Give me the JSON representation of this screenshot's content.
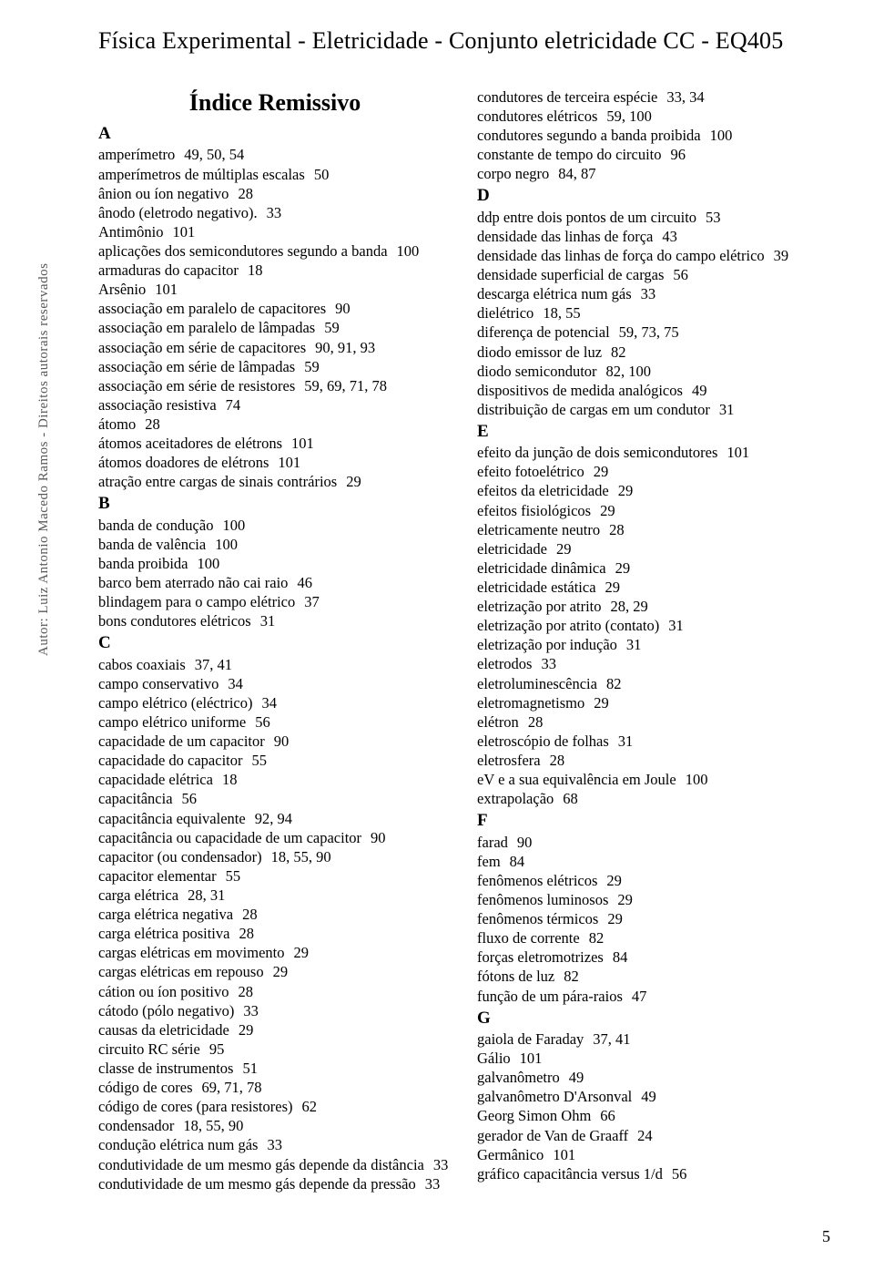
{
  "header": "Física Experimental - Eletricidade - Conjunto eletricidade CC - EQ405",
  "side_credit": "Autor: Luiz Antonio Macedo Ramos - Direitos autorais reservados",
  "index_title": "Índice Remissivo",
  "page_number": "5",
  "columns": [
    {
      "groups": [
        {
          "letter": "A",
          "entries": [
            {
              "term": "amperímetro",
              "pages": "49, 50, 54"
            },
            {
              "term": "amperímetros de múltiplas escalas",
              "pages": "50"
            },
            {
              "term": "ânion ou íon negativo",
              "pages": "28"
            },
            {
              "term": "ânodo (eletrodo negativo).",
              "pages": "33"
            },
            {
              "term": "Antimônio",
              "pages": "101"
            },
            {
              "term": "aplicações dos semicondutores segundo a banda",
              "pages": "100"
            },
            {
              "term": "armaduras do capacitor",
              "pages": "18"
            },
            {
              "term": "Arsênio",
              "pages": "101"
            },
            {
              "term": "associação em paralelo de capacitores",
              "pages": "90"
            },
            {
              "term": "associação em paralelo de lâmpadas",
              "pages": "59"
            },
            {
              "term": "associação em série de capacitores",
              "pages": "90, 91, 93"
            },
            {
              "term": "associação em série de lâmpadas",
              "pages": "59"
            },
            {
              "term": "associação em série de resistores",
              "pages": "59, 69, 71, 78"
            },
            {
              "term": "associação resistiva",
              "pages": "74"
            },
            {
              "term": "átomo",
              "pages": "28"
            },
            {
              "term": "átomos aceitadores de elétrons",
              "pages": "101"
            },
            {
              "term": "átomos doadores de elétrons",
              "pages": "101"
            },
            {
              "term": "atração entre cargas de sinais contrários",
              "pages": "29"
            }
          ]
        },
        {
          "letter": "B",
          "entries": [
            {
              "term": "banda de condução",
              "pages": "100"
            },
            {
              "term": "banda de valência",
              "pages": "100"
            },
            {
              "term": "banda proibida",
              "pages": "100"
            },
            {
              "term": "barco bem aterrado não cai raio",
              "pages": "46"
            },
            {
              "term": "blindagem para o campo elétrico",
              "pages": "37"
            },
            {
              "term": "bons condutores elétricos",
              "pages": "31"
            }
          ]
        },
        {
          "letter": "C",
          "entries": [
            {
              "term": "cabos coaxiais",
              "pages": "37, 41"
            },
            {
              "term": "campo conservativo",
              "pages": "34"
            },
            {
              "term": "campo elétrico (eléctrico)",
              "pages": "34"
            },
            {
              "term": "campo elétrico uniforme",
              "pages": "56"
            },
            {
              "term": "capacidade de um capacitor",
              "pages": "90"
            },
            {
              "term": "capacidade do capacitor",
              "pages": "55"
            },
            {
              "term": "capacidade elétrica",
              "pages": "18"
            },
            {
              "term": "capacitância",
              "pages": "56"
            },
            {
              "term": "capacitância equivalente",
              "pages": "92, 94"
            },
            {
              "term": "capacitância ou capacidade de um capacitor",
              "pages": "90"
            },
            {
              "term": "capacitor (ou condensador)",
              "pages": "18, 55, 90"
            },
            {
              "term": "capacitor elementar",
              "pages": "55"
            },
            {
              "term": "carga elétrica",
              "pages": "28, 31"
            },
            {
              "term": "carga elétrica negativa",
              "pages": "28"
            },
            {
              "term": "carga elétrica positiva",
              "pages": "28"
            },
            {
              "term": "cargas elétricas em movimento",
              "pages": "29"
            },
            {
              "term": "cargas elétricas em repouso",
              "pages": "29"
            },
            {
              "term": "cátion ou íon positivo",
              "pages": "28"
            },
            {
              "term": "cátodo (pólo negativo)",
              "pages": "33"
            },
            {
              "term": "causas da eletricidade",
              "pages": "29"
            },
            {
              "term": "circuito RC série",
              "pages": "95"
            },
            {
              "term": "classe de instrumentos",
              "pages": "51"
            },
            {
              "term": "código de cores",
              "pages": "69, 71, 78"
            },
            {
              "term": "código de cores (para resistores)",
              "pages": "62"
            },
            {
              "term": "condensador",
              "pages": "18, 55, 90"
            },
            {
              "term": "condução elétrica num gás",
              "pages": "33"
            },
            {
              "term": "condutividade de um mesmo gás depende da distância",
              "pages": "33"
            },
            {
              "term": "condutividade de um mesmo gás depende da pressão",
              "pages": "33"
            }
          ]
        }
      ]
    },
    {
      "groups": [
        {
          "letter": "",
          "entries": [
            {
              "term": "condutores de terceira espécie",
              "pages": "33, 34"
            },
            {
              "term": "condutores elétricos",
              "pages": "59, 100"
            },
            {
              "term": "condutores segundo a banda proibida",
              "pages": "100"
            },
            {
              "term": "constante de tempo do circuito",
              "pages": "96"
            },
            {
              "term": "corpo negro",
              "pages": "84, 87"
            }
          ]
        },
        {
          "letter": "D",
          "entries": [
            {
              "term": "ddp entre dois pontos de um circuito",
              "pages": "53"
            },
            {
              "term": "densidade das linhas de força",
              "pages": "43"
            },
            {
              "term": "densidade das linhas de força do campo elétrico",
              "pages": "39"
            },
            {
              "term": "densidade superficial de cargas",
              "pages": "56"
            },
            {
              "term": "descarga elétrica num gás",
              "pages": "33"
            },
            {
              "term": "dielétrico",
              "pages": "18, 55"
            },
            {
              "term": "diferença de potencial",
              "pages": "59, 73, 75"
            },
            {
              "term": "diodo emissor de luz",
              "pages": "82"
            },
            {
              "term": "diodo semicondutor",
              "pages": "82, 100"
            },
            {
              "term": "dispositivos de medida analógicos",
              "pages": "49"
            },
            {
              "term": "distribuição de cargas em um condutor",
              "pages": "31"
            }
          ]
        },
        {
          "letter": "E",
          "entries": [
            {
              "term": "efeito da junção de dois semicondutores",
              "pages": "101"
            },
            {
              "term": "efeito fotoelétrico",
              "pages": "29"
            },
            {
              "term": "efeitos da eletricidade",
              "pages": "29"
            },
            {
              "term": "efeitos fisiológicos",
              "pages": "29"
            },
            {
              "term": "eletricamente neutro",
              "pages": "28"
            },
            {
              "term": "eletricidade",
              "pages": "29"
            },
            {
              "term": "eletricidade dinâmica",
              "pages": "29"
            },
            {
              "term": "eletricidade estática",
              "pages": "29"
            },
            {
              "term": "eletrização por atrito",
              "pages": "28, 29"
            },
            {
              "term": "eletrização por atrito (contato)",
              "pages": "31"
            },
            {
              "term": "eletrização por indução",
              "pages": "31"
            },
            {
              "term": "eletrodos",
              "pages": "33"
            },
            {
              "term": "eletroluminescência",
              "pages": "82"
            },
            {
              "term": "eletromagnetismo",
              "pages": "29"
            },
            {
              "term": "elétron",
              "pages": "28"
            },
            {
              "term": "eletroscópio de folhas",
              "pages": "31"
            },
            {
              "term": "eletrosfera",
              "pages": "28"
            },
            {
              "term": "eV e a sua equivalência em Joule",
              "pages": "100"
            },
            {
              "term": "extrapolação",
              "pages": "68"
            }
          ]
        },
        {
          "letter": "F",
          "entries": [
            {
              "term": "farad",
              "pages": "90"
            },
            {
              "term": "fem",
              "pages": "84"
            },
            {
              "term": "fenômenos elétricos",
              "pages": "29"
            },
            {
              "term": "fenômenos luminosos",
              "pages": "29"
            },
            {
              "term": "fenômenos térmicos",
              "pages": "29"
            },
            {
              "term": "fluxo de corrente",
              "pages": "82"
            },
            {
              "term": "forças eletromotrizes",
              "pages": "84"
            },
            {
              "term": "fótons de luz",
              "pages": "82"
            },
            {
              "term": "função de um pára-raios",
              "pages": "47"
            }
          ]
        },
        {
          "letter": "G",
          "entries": [
            {
              "term": "gaiola de Faraday",
              "pages": "37, 41"
            },
            {
              "term": "Gálio",
              "pages": "101"
            },
            {
              "term": "galvanômetro",
              "pages": "49"
            },
            {
              "term": "galvanômetro D'Arsonval",
              "pages": "49"
            },
            {
              "term": "Georg Simon Ohm",
              "pages": "66"
            },
            {
              "term": "gerador de Van de Graaff",
              "pages": "24"
            },
            {
              "term": "Germânico",
              "pages": "101"
            },
            {
              "term": "gráfico capacitância versus 1/d",
              "pages": "56"
            }
          ]
        }
      ]
    }
  ]
}
